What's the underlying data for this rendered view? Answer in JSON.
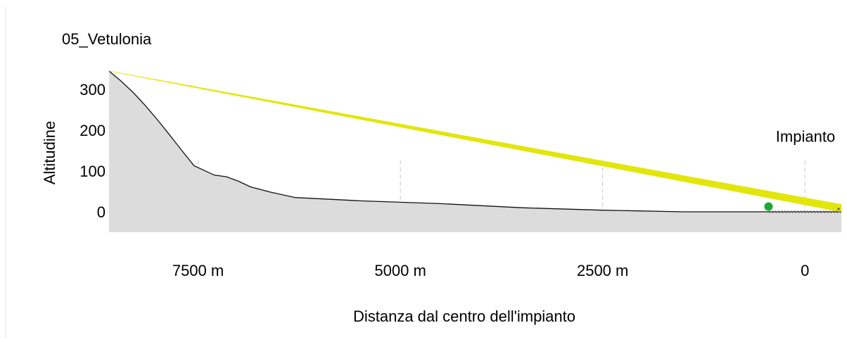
{
  "chart_data": {
    "type": "area",
    "title": "05_Vetulonia",
    "xlabel": "Distanza dal centro dell'impianto",
    "ylabel": "Altitudine",
    "x_reversed": true,
    "xlim": [
      8600,
      -450
    ],
    "ylim": [
      -50,
      350
    ],
    "x_ticks": [
      {
        "value": 7500,
        "label": "7500 m"
      },
      {
        "value": 5000,
        "label": "5000 m"
      },
      {
        "value": 2500,
        "label": "2500 m"
      },
      {
        "value": 0,
        "label": "0"
      }
    ],
    "y_ticks": [
      {
        "value": 0,
        "label": "0"
      },
      {
        "value": 100,
        "label": "100"
      },
      {
        "value": 200,
        "label": "200"
      },
      {
        "value": 300,
        "label": "300"
      }
    ],
    "grid": "vertical dashed",
    "terrain": {
      "x": [
        8600,
        8450,
        8300,
        8150,
        8000,
        7850,
        7700,
        7550,
        7300,
        7150,
        7000,
        6850,
        6600,
        6300,
        5500,
        4500,
        3500,
        2500,
        1500,
        800,
        0,
        -450
      ],
      "y": [
        345,
        320,
        292,
        260,
        225,
        188,
        150,
        113,
        90,
        86,
        75,
        61,
        48,
        35,
        27,
        20,
        10,
        4,
        0,
        0,
        0,
        0
      ]
    },
    "sight_cone": {
      "apex": {
        "x": 8600,
        "y": 345
      },
      "end_x": -450,
      "end_y_low": 0,
      "end_y_high": 18,
      "color": "#e2e60a"
    },
    "observer_point": {
      "x": -450,
      "y": 2
    },
    "plant_point": {
      "x": 450,
      "y": 13,
      "color": "#1aaa33"
    },
    "annotations": [
      {
        "text": "Impianto",
        "x": 0,
        "y": 185
      }
    ],
    "colors": {
      "terrain_fill": "#dcdcdc",
      "terrain_line": "#111111",
      "grid": "#c8c8c8"
    }
  }
}
